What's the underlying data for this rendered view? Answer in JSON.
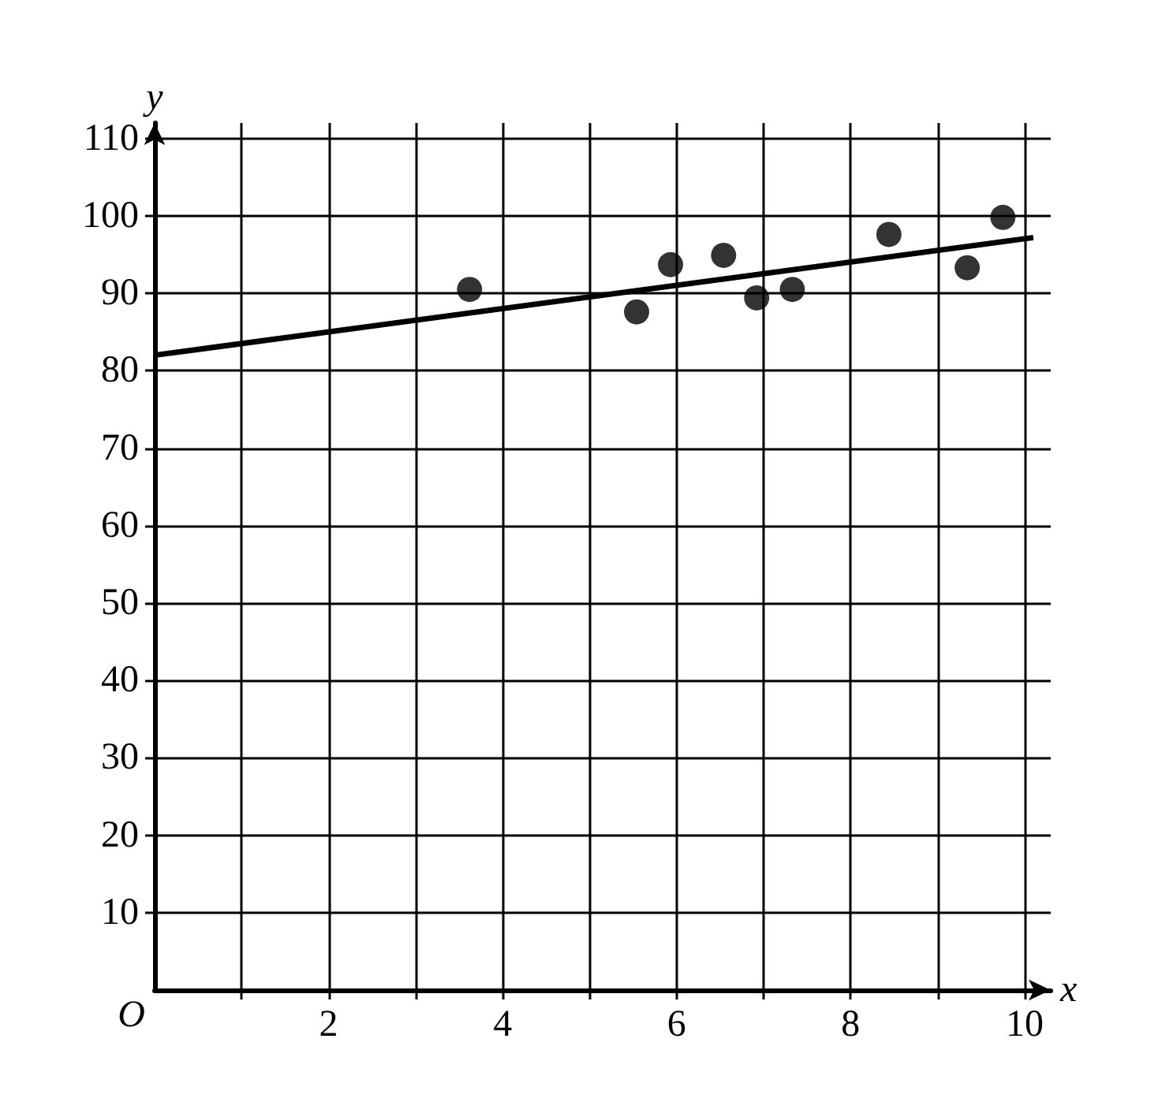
{
  "chart_data": {
    "type": "scatter",
    "xlabel": "x",
    "ylabel": "y",
    "annotations": [
      "O"
    ],
    "xlim": [
      0,
      10.3
    ],
    "ylim": [
      0,
      112
    ],
    "xticks": [
      {
        "value": 1,
        "label": null
      },
      2,
      {
        "value": 3,
        "label": null
      },
      4,
      {
        "value": 5,
        "label": null
      },
      6,
      {
        "value": 7,
        "label": null
      },
      8,
      {
        "value": 9,
        "label": null
      },
      10
    ],
    "yticks": [
      10,
      20,
      30,
      40,
      50,
      60,
      70,
      80,
      90,
      100,
      110
    ],
    "grid": true,
    "marker": "circle",
    "series": [
      {
        "color": "#000000",
        "x": [
          3.62,
          5.54,
          5.93,
          6.54,
          6.92,
          7.33,
          8.44,
          9.34,
          9.75
        ],
        "values": [
          90.5,
          87.6,
          93.7,
          94.9,
          89.4,
          90.5,
          97.6,
          93.3,
          99.8
        ]
      },
      {
        "type": "line",
        "color": "#000000",
        "marker": "none",
        "line_style": "solid",
        "x": [
          0,
          10.1
        ],
        "values": [
          82,
          97.2
        ]
      }
    ]
  }
}
